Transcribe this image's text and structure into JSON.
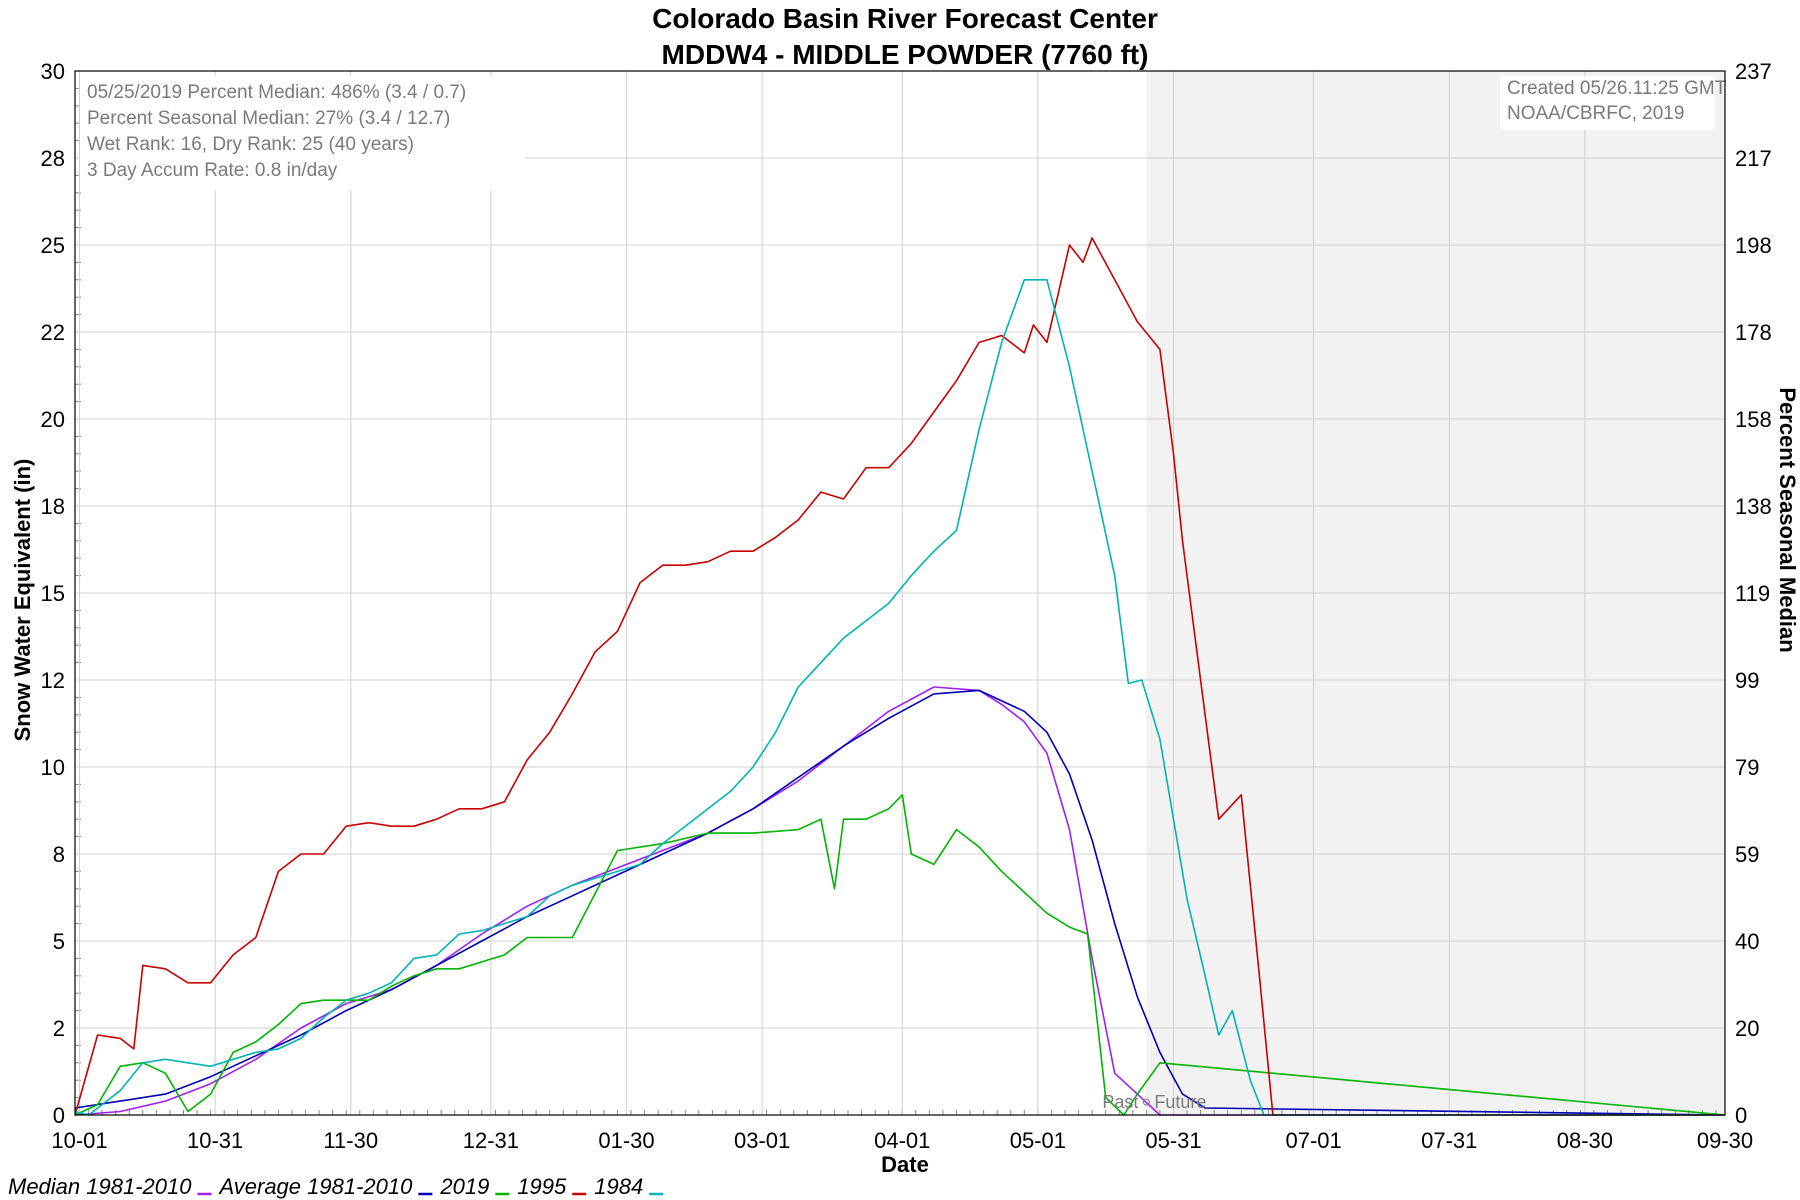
{
  "chart_data": {
    "type": "line",
    "title": "Colorado Basin River Forecast Center",
    "subtitle": "MDDW4 - MIDDLE POWDER (7760 ft)",
    "xlabel": "Date",
    "ylabel": "Snow Water Equivalent (in)",
    "y2label": "Percent Seasonal Median",
    "xlim": [
      0,
      365
    ],
    "ylim": [
      0,
      30
    ],
    "y2lim": [
      0,
      237
    ],
    "x_ticks": [
      {
        "day": 1,
        "label": "10-01"
      },
      {
        "day": 31,
        "label": "10-31"
      },
      {
        "day": 61,
        "label": "11-30"
      },
      {
        "day": 92,
        "label": "12-31"
      },
      {
        "day": 122,
        "label": "01-30"
      },
      {
        "day": 152,
        "label": "03-01"
      },
      {
        "day": 183,
        "label": "04-01"
      },
      {
        "day": 213,
        "label": "05-01"
      },
      {
        "day": 243,
        "label": "05-31"
      },
      {
        "day": 274,
        "label": "07-01"
      },
      {
        "day": 304,
        "label": "07-31"
      },
      {
        "day": 334,
        "label": "08-30"
      },
      {
        "day": 365,
        "label": "09-30"
      }
    ],
    "y_ticks": [
      {
        "value": 0,
        "label": "0"
      },
      {
        "value": 2.5,
        "label": "2"
      },
      {
        "value": 5,
        "label": "5"
      },
      {
        "value": 7.5,
        "label": "8"
      },
      {
        "value": 10,
        "label": "10"
      },
      {
        "value": 12.5,
        "label": "12"
      },
      {
        "value": 15,
        "label": "15"
      },
      {
        "value": 17.5,
        "label": "18"
      },
      {
        "value": 20,
        "label": "20"
      },
      {
        "value": 22.5,
        "label": "22"
      },
      {
        "value": 25,
        "label": "25"
      },
      {
        "value": 27.5,
        "label": "28"
      },
      {
        "value": 30,
        "label": "30"
      }
    ],
    "y2_ticks": [
      "0",
      "20",
      "40",
      "59",
      "79",
      "99",
      "119",
      "138",
      "158",
      "178",
      "198",
      "217",
      "237"
    ],
    "grid": true,
    "future_shade_start_day": 237,
    "divider_labels": {
      "past": "Past",
      "future": "Future"
    },
    "info_box": [
      "05/25/2019 Percent Median: 486% (3.4 / 0.7)",
      "Percent Seasonal Median: 27% (3.4 / 12.7)",
      "Wet Rank: 16, Dry Rank: 25  (40 years)",
      "3 Day Accum Rate: 0.8 in/day"
    ],
    "credit_box": [
      "Created 05/26.11:25 GMT",
      "NOAA/CBRFC, 2019"
    ],
    "legend_placement": "bottom-left",
    "series": [
      {
        "name": "Median 1981-2010",
        "color": "#a020f0",
        "x": [
          0,
          10,
          20,
          30,
          40,
          50,
          60,
          70,
          80,
          90,
          100,
          110,
          120,
          130,
          140,
          150,
          160,
          170,
          180,
          190,
          200,
          205,
          210,
          215,
          220,
          225,
          230,
          240,
          250,
          365
        ],
        "y": [
          0,
          0.1,
          0.4,
          0.9,
          1.6,
          2.5,
          3.2,
          3.6,
          4.3,
          5.2,
          6.0,
          6.6,
          7.1,
          7.6,
          8.1,
          8.8,
          9.6,
          10.6,
          11.6,
          12.3,
          12.2,
          11.8,
          11.3,
          10.4,
          8.2,
          4.5,
          1.2,
          0,
          0,
          0
        ]
      },
      {
        "name": "Average 1981-2010",
        "color": "#0000b4",
        "x": [
          0,
          10,
          20,
          30,
          40,
          50,
          60,
          70,
          80,
          90,
          100,
          110,
          120,
          130,
          140,
          150,
          160,
          170,
          180,
          190,
          200,
          205,
          210,
          215,
          220,
          225,
          230,
          235,
          240,
          245,
          250,
          365
        ],
        "y": [
          0.2,
          0.4,
          0.6,
          1.1,
          1.7,
          2.3,
          3.0,
          3.6,
          4.3,
          5.0,
          5.7,
          6.3,
          6.9,
          7.5,
          8.1,
          8.8,
          9.7,
          10.6,
          11.4,
          12.1,
          12.2,
          11.9,
          11.6,
          11.0,
          9.8,
          7.9,
          5.5,
          3.4,
          1.8,
          0.6,
          0.2,
          0
        ]
      },
      {
        "name": "2019",
        "color": "#00b400",
        "x": [
          0,
          5,
          10,
          15,
          20,
          25,
          30,
          35,
          40,
          45,
          50,
          55,
          60,
          65,
          70,
          75,
          80,
          85,
          90,
          95,
          100,
          110,
          120,
          130,
          140,
          150,
          160,
          165,
          168,
          170,
          175,
          180,
          183,
          185,
          190,
          195,
          200,
          205,
          210,
          215,
          220,
          224,
          228,
          232,
          235,
          240,
          365
        ],
        "y": [
          0,
          0.3,
          1.4,
          1.5,
          1.2,
          0.1,
          0.6,
          1.8,
          2.1,
          2.6,
          3.2,
          3.3,
          3.3,
          3.3,
          3.7,
          4.0,
          4.2,
          4.2,
          4.4,
          4.6,
          5.1,
          5.1,
          7.6,
          7.8,
          8.1,
          8.1,
          8.2,
          8.5,
          6.5,
          8.5,
          8.5,
          8.8,
          9.2,
          7.5,
          7.2,
          8.2,
          7.7,
          7.0,
          6.4,
          5.8,
          5.4,
          5.2,
          0.5,
          0,
          0.6,
          1.5,
          0
        ]
      },
      {
        "name": "1995",
        "color": "#c80000",
        "x": [
          0,
          5,
          10,
          13,
          15,
          20,
          25,
          30,
          35,
          40,
          45,
          50,
          55,
          60,
          65,
          70,
          75,
          80,
          85,
          90,
          95,
          100,
          105,
          110,
          115,
          120,
          125,
          130,
          135,
          140,
          145,
          150,
          155,
          160,
          165,
          170,
          175,
          180,
          185,
          190,
          195,
          200,
          205,
          210,
          212,
          215,
          220,
          223,
          225,
          230,
          235,
          240,
          243,
          245,
          250,
          253,
          258,
          262,
          265,
          365
        ],
        "y": [
          0,
          2.3,
          2.2,
          1.9,
          4.3,
          4.2,
          3.8,
          3.8,
          4.6,
          5.1,
          7.0,
          7.5,
          7.5,
          8.3,
          8.4,
          8.3,
          8.3,
          8.5,
          8.8,
          8.8,
          9.0,
          10.2,
          11.0,
          12.1,
          13.3,
          13.9,
          15.3,
          15.8,
          15.8,
          15.9,
          16.2,
          16.2,
          16.6,
          17.1,
          17.9,
          17.7,
          18.6,
          18.6,
          19.3,
          20.2,
          21.1,
          22.2,
          22.4,
          21.9,
          22.7,
          22.2,
          25.0,
          24.5,
          25.2,
          24.0,
          22.8,
          22.0,
          19.0,
          16.5,
          11.5,
          8.5,
          9.2,
          4.0,
          0,
          0
        ]
      },
      {
        "name": "1984",
        "color": "#00b4b4",
        "x": [
          0,
          3,
          6,
          10,
          15,
          20,
          25,
          30,
          35,
          40,
          45,
          50,
          55,
          60,
          65,
          70,
          75,
          80,
          85,
          90,
          95,
          100,
          105,
          110,
          115,
          120,
          125,
          130,
          135,
          140,
          145,
          150,
          155,
          160,
          165,
          170,
          175,
          180,
          185,
          190,
          195,
          200,
          205,
          210,
          215,
          220,
          225,
          230,
          233,
          236,
          240,
          243,
          246,
          250,
          253,
          256,
          260,
          263,
          265,
          365
        ],
        "y": [
          0.1,
          0,
          0.3,
          0.7,
          1.5,
          1.6,
          1.5,
          1.4,
          1.6,
          1.8,
          1.9,
          2.2,
          2.8,
          3.3,
          3.5,
          3.8,
          4.5,
          4.6,
          5.2,
          5.3,
          5.5,
          5.7,
          6.3,
          6.6,
          6.8,
          7.0,
          7.2,
          7.8,
          8.3,
          8.8,
          9.3,
          10.0,
          11.0,
          12.3,
          13.0,
          13.7,
          14.2,
          14.7,
          15.5,
          16.2,
          16.8,
          19.7,
          22.2,
          24.0,
          24.0,
          21.5,
          18.5,
          15.5,
          12.4,
          12.5,
          10.8,
          8.5,
          6.2,
          4.0,
          2.3,
          3.0,
          1.0,
          0,
          0,
          0
        ]
      }
    ]
  }
}
